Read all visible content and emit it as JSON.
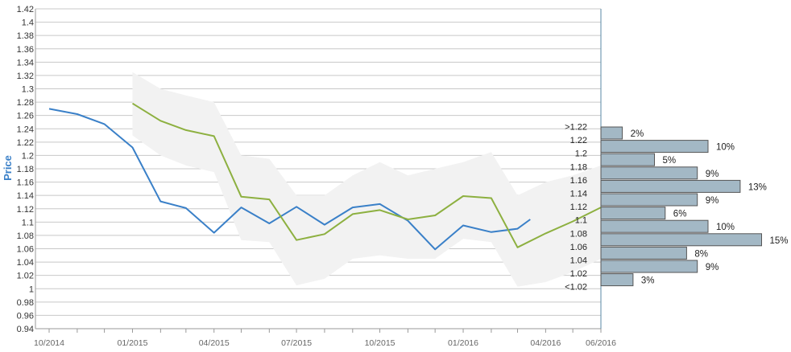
{
  "chart_data": {
    "type": "line",
    "ylabel": "Price",
    "ylim": [
      0.94,
      1.42
    ],
    "y_ticks": [
      "0.94",
      "0.96",
      "0.98",
      "1",
      "1.02",
      "1.04",
      "1.06",
      "1.08",
      "1.1",
      "1.12",
      "1.14",
      "1.16",
      "1.18",
      "1.2",
      "1.22",
      "1.24",
      "1.26",
      "1.28",
      "1.3",
      "1.32",
      "1.34",
      "1.36",
      "1.38",
      "1.4",
      "1.42"
    ],
    "x_tick_labels": [
      "10/2014",
      "01/2015",
      "04/2015",
      "07/2015",
      "10/2015",
      "01/2016",
      "04/2016",
      "06/2016"
    ],
    "grid": true,
    "series": [
      {
        "color": "#3a80c8",
        "x": [
          "2014-10",
          "2014-11",
          "2014-12",
          "2015-01",
          "2015-02",
          "2015-03",
          "2015-04",
          "2015-05",
          "2015-06",
          "2015-07",
          "2015-08",
          "2015-09",
          "2015-10",
          "2015-11",
          "2015-12",
          "2016-01",
          "2016-02",
          "2016-03",
          "2016-03-15"
        ],
        "values": [
          1.27,
          1.262,
          1.247,
          1.212,
          1.131,
          1.121,
          1.084,
          1.122,
          1.098,
          1.123,
          1.096,
          1.122,
          1.127,
          1.102,
          1.059,
          1.095,
          1.085,
          1.09,
          1.104
        ]
      },
      {
        "color": "#8db040",
        "x": [
          "2015-01",
          "2015-02",
          "2015-03",
          "2015-04",
          "2015-05",
          "2015-06",
          "2015-07",
          "2015-08",
          "2015-09",
          "2015-10",
          "2015-11",
          "2015-12",
          "2016-01",
          "2016-02",
          "2016-03",
          "2016-04",
          "2016-05",
          "2016-06"
        ],
        "values": [
          1.278,
          1.252,
          1.238,
          1.229,
          1.138,
          1.134,
          1.073,
          1.082,
          1.112,
          1.118,
          1.104,
          1.11,
          1.139,
          1.136,
          1.062,
          1.083,
          1.101,
          1.122
        ]
      }
    ],
    "band": {
      "color": "#f2f2f2",
      "x": [
        "2015-01",
        "2015-02",
        "2015-03",
        "2015-04",
        "2015-05",
        "2015-06",
        "2015-07",
        "2015-08",
        "2015-09",
        "2015-10",
        "2015-11",
        "2015-12",
        "2016-01",
        "2016-02",
        "2016-03",
        "2016-04",
        "2016-05",
        "2016-06"
      ],
      "upper": [
        1.325,
        1.3,
        1.29,
        1.28,
        1.2,
        1.195,
        1.14,
        1.14,
        1.17,
        1.19,
        1.17,
        1.18,
        1.19,
        1.205,
        1.14,
        1.16,
        1.17,
        1.185
      ],
      "lower": [
        1.23,
        1.2,
        1.185,
        1.175,
        1.073,
        1.07,
        1.005,
        1.015,
        1.045,
        1.05,
        1.045,
        1.045,
        1.075,
        1.07,
        1.003,
        1.01,
        1.025,
        1.045
      ]
    },
    "distribution": {
      "color": "#a3b8c5",
      "bins": [
        {
          "label": ">1.22",
          "pct": 2,
          "pct_label": "2%"
        },
        {
          "label": "1.22",
          "pct": 10,
          "pct_label": "10%"
        },
        {
          "label": "1.2",
          "pct": 5,
          "pct_label": "5%"
        },
        {
          "label": "1.18",
          "pct": 9,
          "pct_label": "9%"
        },
        {
          "label": "1.16",
          "pct": 13,
          "pct_label": "13%"
        },
        {
          "label": "1.14",
          "pct": 9,
          "pct_label": "9%"
        },
        {
          "label": "1.12",
          "pct": 6,
          "pct_label": "6%"
        },
        {
          "label": "1.1",
          "pct": 10,
          "pct_label": "10%"
        },
        {
          "label": "1.08",
          "pct": 15,
          "pct_label": "15%"
        },
        {
          "label": "1.06",
          "pct": 8,
          "pct_label": "8%"
        },
        {
          "label": "1.04",
          "pct": 9,
          "pct_label": "9%"
        },
        {
          "label": "1.02",
          "pct": 3,
          "pct_label": "3%"
        },
        {
          "label": "<1.02",
          "pct": null,
          "pct_label": ""
        }
      ]
    }
  }
}
